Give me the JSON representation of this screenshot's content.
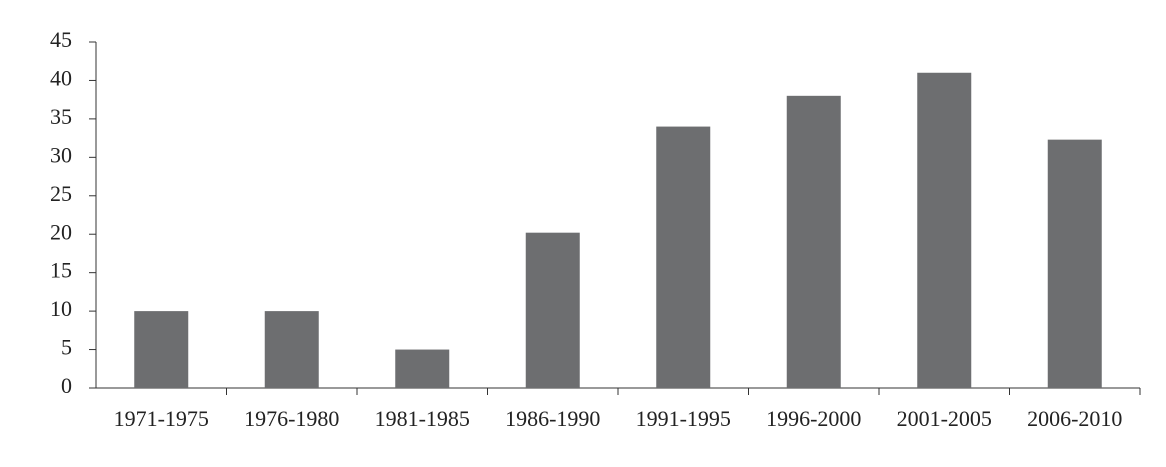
{
  "chart_data": {
    "type": "bar",
    "categories": [
      "1971-1975",
      "1976-1980",
      "1981-1985",
      "1986-1990",
      "1991-1995",
      "1996-2000",
      "2001-2005",
      "2006-2010"
    ],
    "values": [
      10,
      10,
      5,
      20.2,
      34,
      38,
      41,
      32.3
    ],
    "color": "#6d6e70",
    "ylim": [
      0,
      45
    ],
    "yticks": [
      0,
      5,
      10,
      15,
      20,
      25,
      30,
      35,
      40,
      45
    ],
    "grid": false
  }
}
